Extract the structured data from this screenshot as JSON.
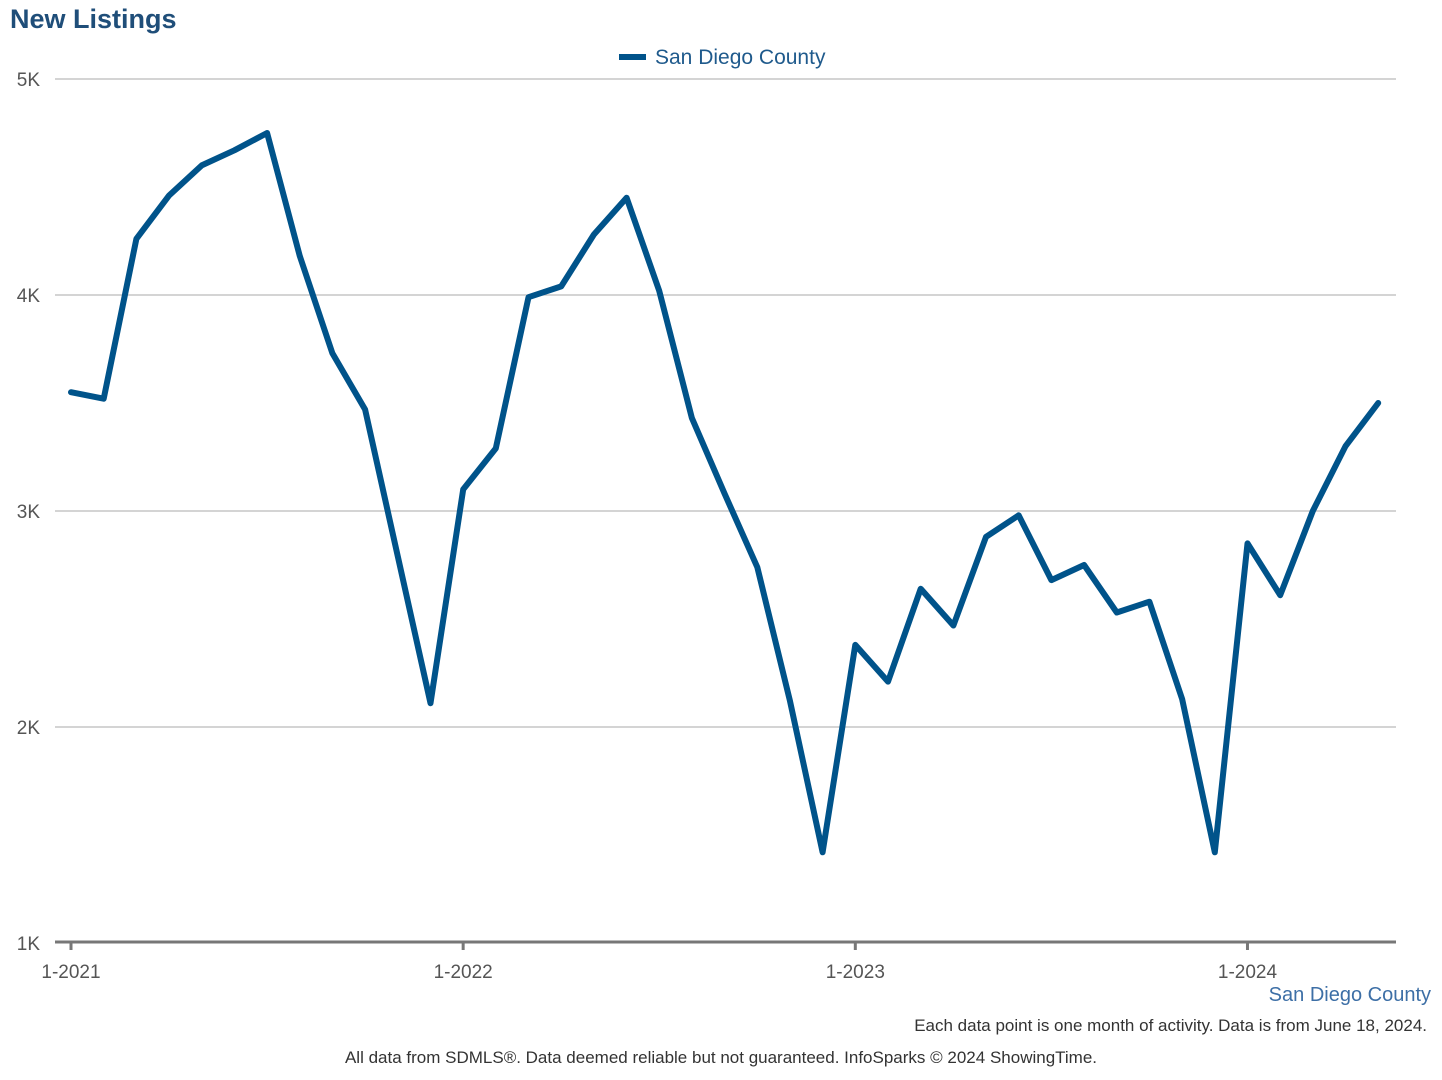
{
  "title": "New Listings",
  "colors": {
    "series": "#00538a",
    "grid": "#bbbbbb",
    "axis": "#777777",
    "title": "#1f4e79"
  },
  "chart_data": {
    "type": "line",
    "title": "New Listings",
    "xlabel": "",
    "ylabel": "",
    "ylim": [
      1000,
      5000
    ],
    "yticks": [
      1000,
      2000,
      3000,
      4000,
      5000
    ],
    "ytick_labels": [
      "1K",
      "2K",
      "3K",
      "4K",
      "5K"
    ],
    "xticks": [
      "1-2021",
      "1-2022",
      "1-2023",
      "1-2024"
    ],
    "grid": true,
    "legend_position": "top-center",
    "series": [
      {
        "name": "San Diego County",
        "x": [
          "1-2021",
          "2-2021",
          "3-2021",
          "4-2021",
          "5-2021",
          "6-2021",
          "7-2021",
          "8-2021",
          "9-2021",
          "10-2021",
          "11-2021",
          "12-2021",
          "1-2022",
          "2-2022",
          "3-2022",
          "4-2022",
          "5-2022",
          "6-2022",
          "7-2022",
          "8-2022",
          "9-2022",
          "10-2022",
          "11-2022",
          "12-2022",
          "1-2023",
          "2-2023",
          "3-2023",
          "4-2023",
          "5-2023",
          "6-2023",
          "7-2023",
          "8-2023",
          "9-2023",
          "10-2023",
          "11-2023",
          "12-2023",
          "1-2024",
          "2-2024",
          "3-2024",
          "4-2024",
          "5-2024"
        ],
        "values": [
          3550,
          3520,
          4260,
          4460,
          4600,
          4670,
          4750,
          4180,
          3730,
          3470,
          2790,
          2110,
          3100,
          3290,
          3990,
          4040,
          4280,
          4450,
          4020,
          3430,
          3080,
          2740,
          2120,
          1420,
          2380,
          2210,
          2640,
          2470,
          2880,
          2980,
          2680,
          2750,
          2530,
          2580,
          2130,
          1420,
          2850,
          2610,
          3000,
          3300,
          3500
        ]
      }
    ]
  },
  "footer": {
    "series_caption": "San Diego County",
    "note": "Each data point is one month of activity. Data is from June 18, 2024.",
    "credit": "All data from SDMLS®. Data deemed reliable but not guaranteed. InfoSparks © 2024 ShowingTime."
  }
}
